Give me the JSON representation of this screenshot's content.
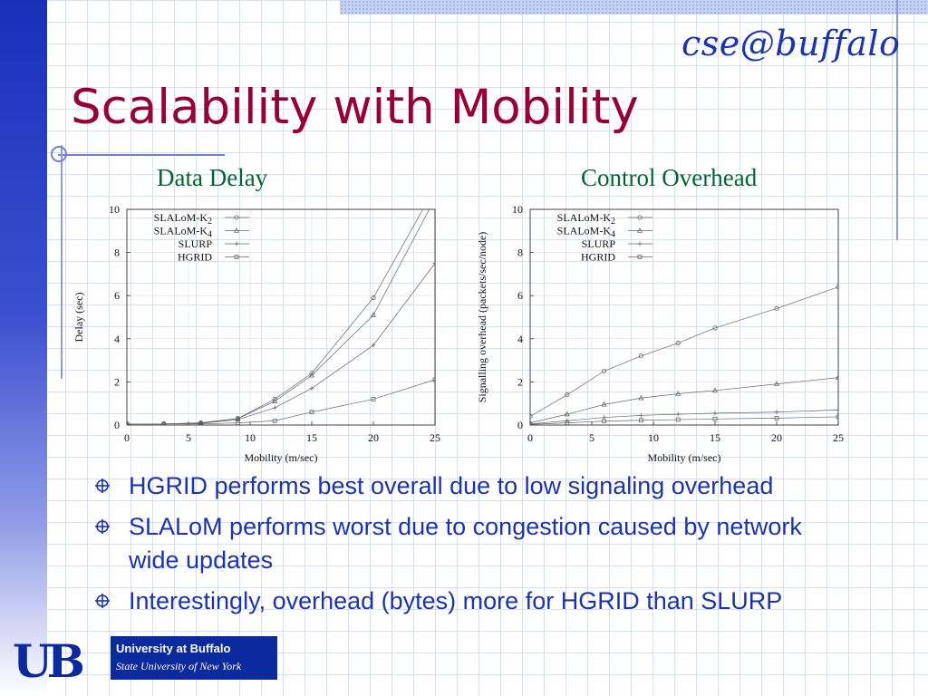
{
  "slide": {
    "logo_text": "cse@buffalo",
    "title": "Scalability with Mobility",
    "footer": {
      "mark": "UB",
      "line1": "University at Buffalo",
      "line2": "State University of New York"
    }
  },
  "bullets": [
    "HGRID performs best overall due to low signaling overhead",
    "SLALoM performs worst due to congestion caused by network wide updates",
    "Interestingly, overhead (bytes) more for HGRID than SLURP"
  ],
  "colors": {
    "title": "#990033",
    "chart_title": "#006633",
    "bullet_text": "#1a33b3",
    "left_bar": "#1a2fb8"
  },
  "chart_data": [
    {
      "type": "line",
      "title": "Data Delay",
      "xlabel": "Mobility (m/sec)",
      "ylabel": "Delay (sec)",
      "xlim": [
        0,
        25
      ],
      "ylim": [
        0,
        10
      ],
      "xticks": [
        "0",
        "5",
        "10",
        "15",
        "20",
        "25"
      ],
      "yticks": [
        "0",
        "2",
        "4",
        "6",
        "8",
        "10"
      ],
      "legend_position": "top-left",
      "x": [
        0,
        3,
        6,
        9,
        12,
        15,
        20,
        25
      ],
      "series": [
        {
          "name": "SLALoM-K2",
          "label": "SLALoM-K",
          "sub": "2",
          "marker": "circle",
          "values": [
            0.05,
            0.05,
            0.1,
            0.3,
            1.2,
            2.4,
            5.9,
            11.0
          ]
        },
        {
          "name": "SLALoM-K4",
          "label": "SLALoM-K",
          "sub": "4",
          "marker": "triangle",
          "values": [
            0.05,
            0.05,
            0.1,
            0.3,
            1.1,
            2.3,
            5.1,
            10.5
          ]
        },
        {
          "name": "SLURP",
          "label": "SLURP",
          "sub": "",
          "marker": "plus",
          "values": [
            0.05,
            0.05,
            0.08,
            0.25,
            0.8,
            1.7,
            3.7,
            7.5
          ]
        },
        {
          "name": "HGRID",
          "label": "HGRID",
          "sub": "",
          "marker": "square",
          "values": [
            0.05,
            0.05,
            0.05,
            0.1,
            0.2,
            0.6,
            1.2,
            2.1
          ]
        }
      ]
    },
    {
      "type": "line",
      "title": "Control Overhead",
      "xlabel": "Mobility (m/sec)",
      "ylabel": "Signalling overhead (packets/sec/node)",
      "xlim": [
        0,
        25
      ],
      "ylim": [
        0,
        10
      ],
      "xticks": [
        "0",
        "5",
        "10",
        "15",
        "20",
        "25"
      ],
      "yticks": [
        "0",
        "2",
        "4",
        "6",
        "8",
        "10"
      ],
      "legend_position": "top-left",
      "x": [
        0,
        3,
        6,
        9,
        12,
        15,
        20,
        25
      ],
      "series": [
        {
          "name": "SLALoM-K2",
          "label": "SLALoM-K",
          "sub": "2",
          "marker": "circle",
          "values": [
            0.4,
            1.4,
            2.5,
            3.2,
            3.8,
            4.5,
            5.4,
            6.4
          ]
        },
        {
          "name": "SLALoM-K4",
          "label": "SLALoM-K",
          "sub": "4",
          "marker": "triangle",
          "values": [
            0.1,
            0.5,
            0.95,
            1.25,
            1.45,
            1.6,
            1.9,
            2.2
          ]
        },
        {
          "name": "SLURP",
          "label": "SLURP",
          "sub": "",
          "marker": "plus",
          "values": [
            0.05,
            0.2,
            0.35,
            0.45,
            0.5,
            0.55,
            0.6,
            0.7
          ]
        },
        {
          "name": "HGRID",
          "label": "HGRID",
          "sub": "",
          "marker": "square",
          "values": [
            0.03,
            0.1,
            0.18,
            0.22,
            0.25,
            0.28,
            0.32,
            0.38
          ]
        }
      ]
    }
  ]
}
